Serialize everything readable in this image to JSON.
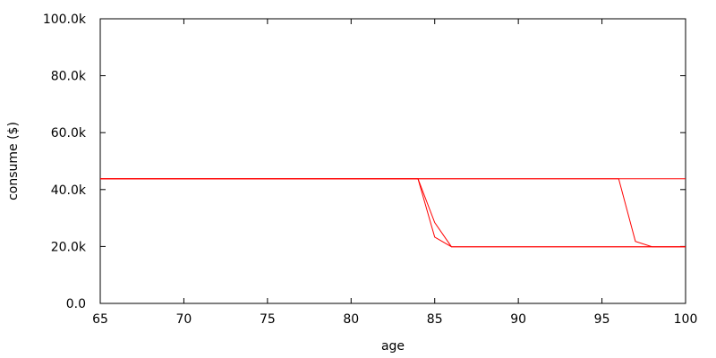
{
  "chart_data": {
    "type": "line",
    "xlabel": "age",
    "ylabel": "consume ($)",
    "xlim": [
      65,
      100
    ],
    "ylim": [
      0,
      100000
    ],
    "x_ticks": [
      {
        "value": 65,
        "label": "65"
      },
      {
        "value": 70,
        "label": "70"
      },
      {
        "value": 75,
        "label": "75"
      },
      {
        "value": 80,
        "label": "80"
      },
      {
        "value": 85,
        "label": "85"
      },
      {
        "value": 90,
        "label": "90"
      },
      {
        "value": 95,
        "label": "95"
      },
      {
        "value": 100,
        "label": "100"
      }
    ],
    "y_ticks": [
      {
        "value": 0,
        "label": "0.0"
      },
      {
        "value": 20000,
        "label": "20.0k"
      },
      {
        "value": 40000,
        "label": "40.0k"
      },
      {
        "value": 60000,
        "label": "60.0k"
      },
      {
        "value": 80000,
        "label": "80.0k"
      },
      {
        "value": 100000,
        "label": "100.0k"
      }
    ],
    "grid": false,
    "legend": "none",
    "series_color": "#ff0000",
    "series": [
      {
        "x": [
          65,
          100
        ],
        "y": [
          43800,
          43800
        ]
      },
      {
        "x": [
          65,
          84,
          85,
          86,
          100
        ],
        "y": [
          43800,
          43800,
          23300,
          19900,
          19900
        ]
      },
      {
        "x": [
          65,
          84,
          85,
          86,
          100
        ],
        "y": [
          43800,
          43800,
          28400,
          19900,
          19900
        ]
      },
      {
        "x": [
          65,
          96,
          97,
          98,
          100
        ],
        "y": [
          43800,
          43800,
          21800,
          19900,
          19900
        ]
      }
    ]
  }
}
